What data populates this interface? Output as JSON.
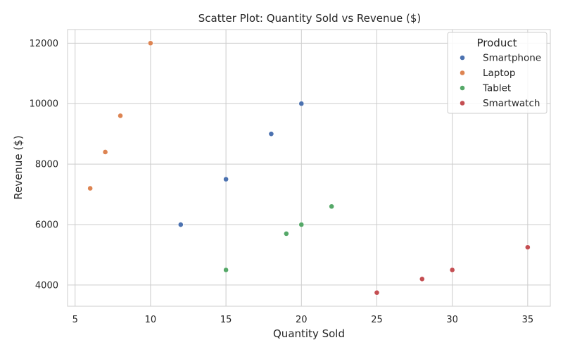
{
  "chart_data": {
    "type": "scatter",
    "title": "Scatter Plot: Quantity Sold vs Revenue ($)",
    "xlabel": "Quantity Sold",
    "ylabel": "Revenue ($)",
    "xlim": [
      4.5,
      36.5
    ],
    "ylim": [
      3300,
      12450
    ],
    "xticks": [
      5,
      10,
      15,
      20,
      25,
      30,
      35
    ],
    "yticks": [
      4000,
      6000,
      8000,
      10000,
      12000
    ],
    "grid": true,
    "legend": {
      "title": "Product",
      "position": "top-right"
    },
    "series": [
      {
        "name": "Smartphone",
        "color": "#4c72b0",
        "points": [
          [
            12,
            6000
          ],
          [
            15,
            7500
          ],
          [
            18,
            9000
          ],
          [
            20,
            10000
          ]
        ]
      },
      {
        "name": "Laptop",
        "color": "#dd8452",
        "points": [
          [
            6,
            7200
          ],
          [
            7,
            8400
          ],
          [
            8,
            9600
          ],
          [
            10,
            12000
          ]
        ]
      },
      {
        "name": "Tablet",
        "color": "#55a868",
        "points": [
          [
            15,
            4500
          ],
          [
            19,
            5700
          ],
          [
            20,
            6000
          ],
          [
            22,
            6600
          ]
        ]
      },
      {
        "name": "Smartwatch",
        "color": "#c44e52",
        "points": [
          [
            25,
            3750
          ],
          [
            28,
            4200
          ],
          [
            30,
            4500
          ],
          [
            35,
            5250
          ]
        ]
      }
    ]
  }
}
